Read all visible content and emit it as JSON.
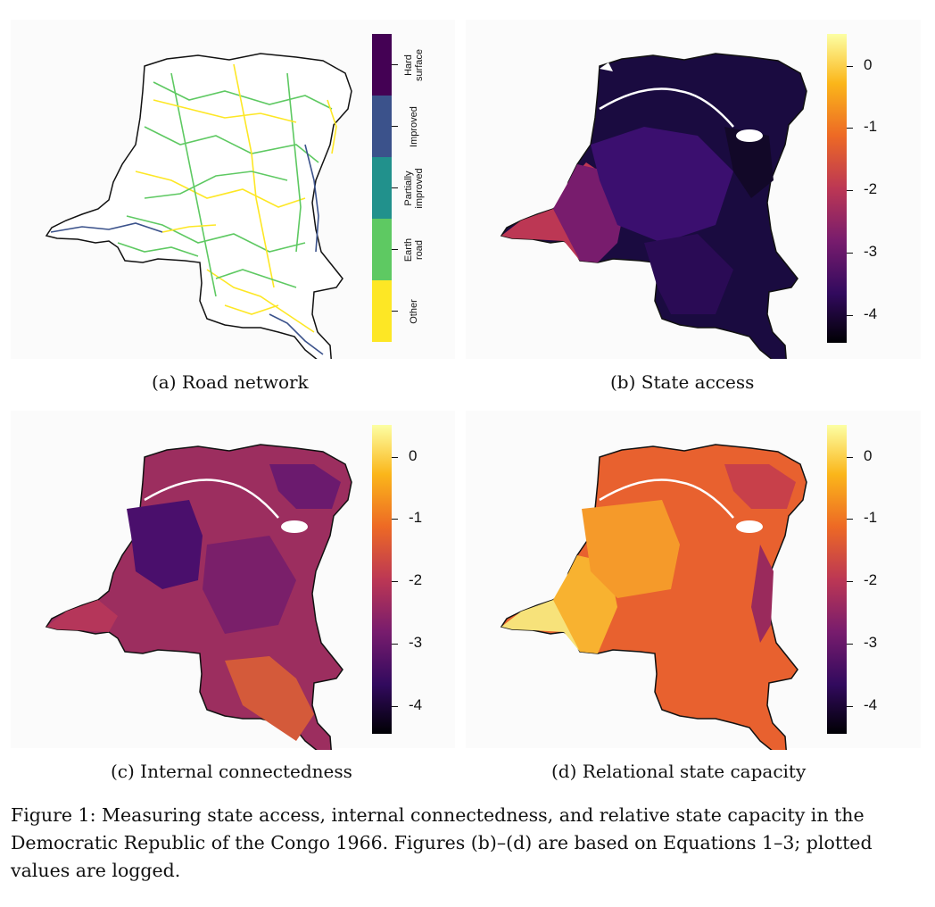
{
  "panels": [
    {
      "id": "a",
      "caption": "(a) Road network",
      "type": "categorical",
      "legend_categories": [
        {
          "label": "Hard\nsurface",
          "color": "#440154"
        },
        {
          "label": "Improved",
          "color": "#3b528b"
        },
        {
          "label": "Partially\nimproved",
          "color": "#21918c"
        },
        {
          "label": "Earth\nroad",
          "color": "#5ec962"
        },
        {
          "label": "Other",
          "color": "#fde725"
        }
      ]
    },
    {
      "id": "b",
      "caption": "(b) State access",
      "type": "continuous",
      "ticks": [
        "0",
        "-1",
        "-2",
        "-3",
        "-4"
      ]
    },
    {
      "id": "c",
      "caption": "(c) Internal connectedness",
      "type": "continuous",
      "ticks": [
        "0",
        "-1",
        "-2",
        "-3",
        "-4"
      ]
    },
    {
      "id": "d",
      "caption": "(d) Relational state capacity",
      "type": "continuous",
      "ticks": [
        "0",
        "-1",
        "-2",
        "-3",
        "-4"
      ]
    }
  ],
  "colorscale": {
    "name": "inferno",
    "stops": [
      "#000004",
      "#320a5e",
      "#781c6d",
      "#bc3754",
      "#ed6925",
      "#fbb61a",
      "#fcffa4"
    ]
  },
  "figure_caption": "Figure 1: Measuring state access, internal connectedness, and relative state capacity in the Democratic Republic of the Congo 1966. Figures (b)–(d) are based on Equations 1–3; plotted values are logged."
}
